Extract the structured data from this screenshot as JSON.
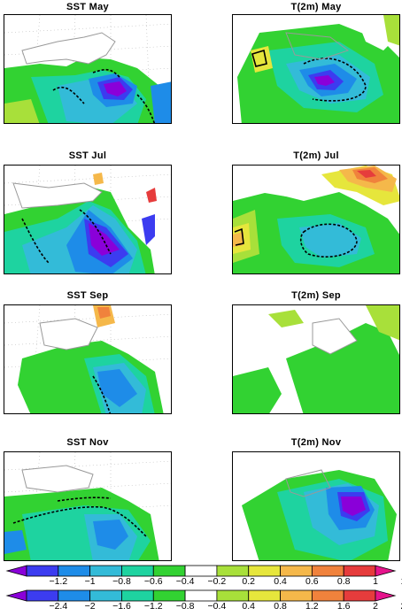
{
  "panels": [
    {
      "title": "SST May"
    },
    {
      "title": "T(2m) May"
    },
    {
      "title": "SST Jul"
    },
    {
      "title": "T(2m) Jul"
    },
    {
      "title": "SST Sep"
    },
    {
      "title": "T(2m) Sep"
    },
    {
      "title": "SST Nov"
    },
    {
      "title": "T(2m) Nov"
    }
  ],
  "colorbar_sst": {
    "labels": [
      "-1.2",
      "-1",
      "-0.8",
      "-0.6",
      "-0.4",
      "-0.2",
      "0.2",
      "0.4",
      "0.6",
      "0.8",
      "1",
      "1.2"
    ]
  },
  "colorbar_t2m": {
    "labels": [
      "-2.4",
      "-2",
      "-1.6",
      "-1.2",
      "-0.8",
      "-0.4",
      "0.4",
      "0.8",
      "1.2",
      "1.6",
      "2",
      "2.4"
    ]
  },
  "palette": [
    "#8a00d9",
    "#3c3cf0",
    "#1e8ce8",
    "#33bbd8",
    "#1ed3a0",
    "#32d232",
    "#ffffff",
    "#a8e03a",
    "#e6e63c",
    "#f5b84a",
    "#f0823c",
    "#e63c3c",
    "#e6148c"
  ]
}
